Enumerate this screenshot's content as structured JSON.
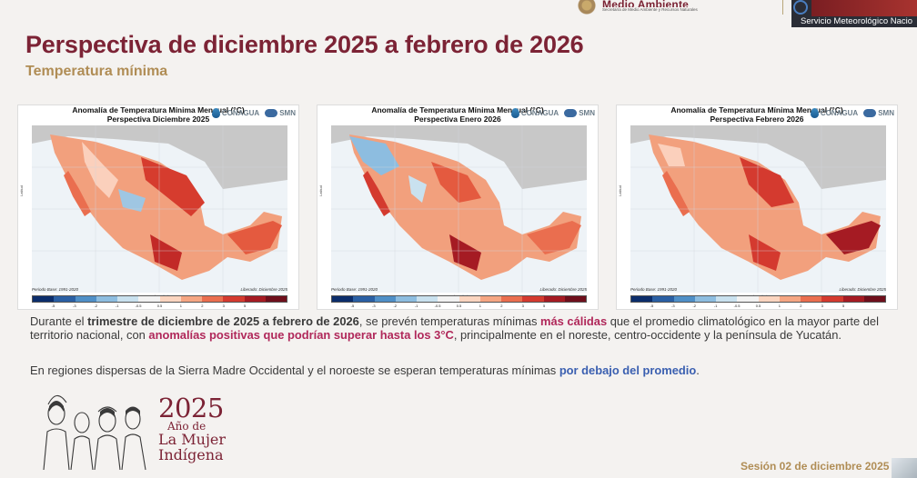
{
  "header": {
    "gov_name": "Medio Ambiente",
    "gov_sub": "Secretaría de Medio Ambiente y Recursos Naturales",
    "smn_label": "Servicio Meteorológico Nacio"
  },
  "slide": {
    "title": "Perspectiva de diciembre 2025 a febrero de 2026",
    "subtitle": "Temperatura mínima"
  },
  "maps": [
    {
      "title_line1": "Anomalía de Temperatura Mínima Mensual (°C)",
      "title_line2": "Perspectiva Diciembre 2025",
      "base": "Periodo Base: 1991-2020",
      "release": "Liberado: Diciembre 2025"
    },
    {
      "title_line1": "Anomalía de Temperatura Mínima Mensual (°C)",
      "title_line2": "Perspectiva Enero 2026",
      "base": "Periodo Base: 1991-2020",
      "release": "Liberado: Diciembre 2025"
    },
    {
      "title_line1": "Anomalía de Temperatura Mínima Mensual (°C)",
      "title_line2": "Perspectiva Febrero 2026",
      "base": "Periodo Base: 1991-2020",
      "release": "Liberado: Diciembre 2025"
    }
  ],
  "map_common": {
    "conagua": "CONAGUA",
    "smn": "SMN",
    "lat_label": "Latitud",
    "lon_label": "Longitud",
    "colorbar_ticks": [
      "-5",
      "-3",
      "-2",
      "-1",
      "-0.5",
      "0.5",
      "1",
      "2",
      "3",
      "5"
    ],
    "colorbar_colors": [
      "#0b2d6b",
      "#2a5fa3",
      "#4f8fc7",
      "#8dbde0",
      "#c9e1ef",
      "#f2f2f2",
      "#fbd5c0",
      "#f5a683",
      "#ea6e4f",
      "#d43a2f",
      "#a51b23",
      "#6e0f1c"
    ]
  },
  "body": {
    "p1_a": "Durante el ",
    "p1_b": "trimestre de diciembre de 2025 a febrero de 2026",
    "p1_c": ", se prevén temperaturas mínimas ",
    "p1_d": "más cálidas",
    "p1_e": " que el promedio climatológico en la mayor parte del territorio nacional, con ",
    "p1_f": "anomalías positivas que podrían superar hasta los 3°C",
    "p1_g": ", principalmente en el noreste, centro-occidente y la península de Yucatán.",
    "p2_a": "En regiones dispersas de la Sierra Madre Occidental y el noroeste se esperan temperaturas mínimas ",
    "p2_b": "por debajo del promedio",
    "p2_c": "."
  },
  "footer": {
    "year": "2025",
    "line1": "Año de",
    "line2": "La Mujer",
    "line3": "Indígena",
    "session": "Sesión 02 de diciembre 2025"
  }
}
